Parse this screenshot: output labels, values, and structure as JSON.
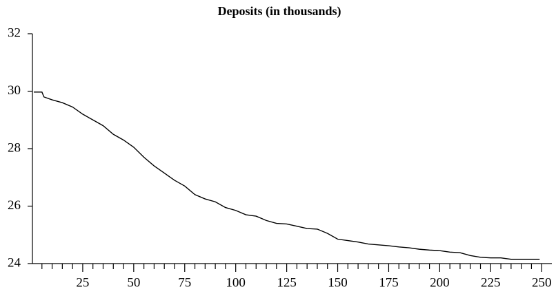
{
  "chart_data": {
    "type": "line",
    "title": "Deposits (in thousands)",
    "x": [
      1,
      5,
      6,
      10,
      15,
      20,
      25,
      30,
      35,
      40,
      45,
      50,
      55,
      60,
      65,
      70,
      75,
      80,
      85,
      90,
      95,
      100,
      105,
      110,
      115,
      120,
      125,
      130,
      135,
      140,
      145,
      150,
      155,
      160,
      165,
      170,
      175,
      180,
      185,
      190,
      195,
      200,
      205,
      210,
      215,
      220,
      225,
      230,
      235,
      240,
      245,
      249
    ],
    "values": [
      29.97,
      29.97,
      29.8,
      29.7,
      29.6,
      29.45,
      29.2,
      29.0,
      28.8,
      28.5,
      28.3,
      28.05,
      27.7,
      27.4,
      27.15,
      26.9,
      26.7,
      26.4,
      26.25,
      26.15,
      25.95,
      25.85,
      25.7,
      25.65,
      25.5,
      25.4,
      25.38,
      25.3,
      25.22,
      25.2,
      25.05,
      24.85,
      24.8,
      24.75,
      24.68,
      24.65,
      24.62,
      24.58,
      24.55,
      24.5,
      24.47,
      24.45,
      24.4,
      24.38,
      24.28,
      24.22,
      24.2,
      24.2,
      24.15,
      24.15,
      24.15,
      24.15
    ],
    "color": "#000000",
    "xlim": [
      0,
      255
    ],
    "xticks": [
      25,
      50,
      75,
      100,
      125,
      150,
      175,
      200,
      225,
      250
    ],
    "xminorticks": [
      5,
      10,
      15,
      20,
      30,
      35,
      40,
      45,
      55,
      60,
      65,
      70,
      80,
      85,
      90,
      95,
      105,
      110,
      115,
      120,
      130,
      135,
      140,
      145,
      155,
      160,
      165,
      170,
      180,
      185,
      190,
      195,
      205,
      210,
      215,
      220,
      230,
      235,
      240,
      245
    ],
    "ylim": [
      24,
      32
    ],
    "yticks": [
      24,
      26,
      28,
      30,
      32
    ],
    "grid": false
  }
}
